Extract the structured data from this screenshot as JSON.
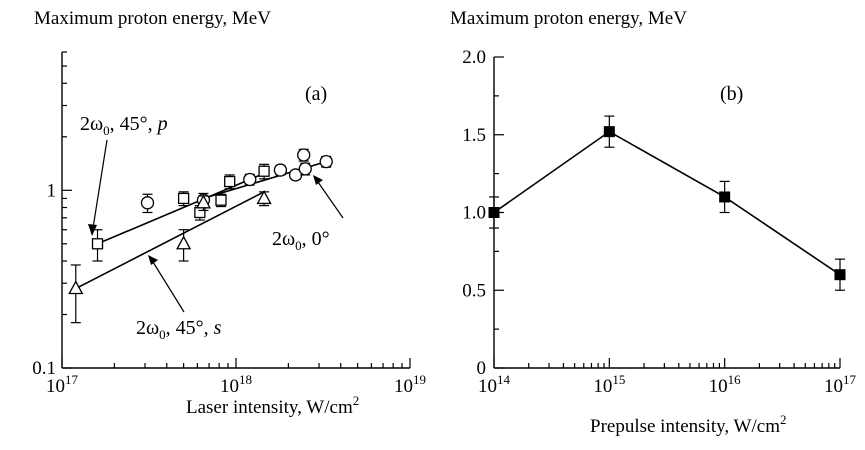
{
  "chart_data": [
    {
      "type": "scatter",
      "panel_label": "(a)",
      "title": "",
      "ylabel": "Maximum proton energy, MeV",
      "xlabel": "Laser intensity, W/cm",
      "xlabel_sup": "2",
      "xscale": "log",
      "yscale": "log",
      "xlim": [
        1e+17,
        1e+19
      ],
      "ylim": [
        0.1,
        6
      ],
      "x_ticks": [
        {
          "base": "10",
          "exp": "17",
          "value": 1e+17
        },
        {
          "base": "10",
          "exp": "18",
          "value": 1e+18
        },
        {
          "base": "10",
          "exp": "19",
          "value": 1e+19
        }
      ],
      "y_ticks": [
        {
          "label": "0.1",
          "value": 0.1
        },
        {
          "label": "1",
          "value": 1
        }
      ],
      "series": [
        {
          "name_main": "2ω",
          "name_sub": "0",
          "name_rest": ", 45°, ",
          "name_italic": "p",
          "marker": "square",
          "points": [
            {
              "x": 1.6e+17,
              "y": 0.5,
              "err": 0.1
            },
            {
              "x": 5e+17,
              "y": 0.9,
              "err": 0.08
            },
            {
              "x": 6.2e+17,
              "y": 0.75,
              "err": 0.07
            },
            {
              "x": 8.2e+17,
              "y": 0.88,
              "err": 0.07
            },
            {
              "x": 9.2e+17,
              "y": 1.12,
              "err": 0.1
            },
            {
              "x": 1.45e+18,
              "y": 1.28,
              "err": 0.12
            }
          ],
          "fit": [
            [
              1.6e+17,
              0.5
            ],
            [
              1.55e+18,
              1.28
            ]
          ]
        },
        {
          "name_main": "2ω",
          "name_sub": "0",
          "name_rest": ", 0°",
          "name_italic": "",
          "marker": "circle",
          "points": [
            {
              "x": 3.1e+17,
              "y": 0.85,
              "err": 0.1
            },
            {
              "x": 6.5e+17,
              "y": 0.88,
              "err": 0.08
            },
            {
              "x": 1.2e+18,
              "y": 1.15,
              "err": 0.08
            },
            {
              "x": 1.8e+18,
              "y": 1.3,
              "err": 0.08
            },
            {
              "x": 2.2e+18,
              "y": 1.22,
              "err": 0.07
            },
            {
              "x": 2.45e+18,
              "y": 1.58,
              "err": 0.12
            },
            {
              "x": 2.5e+18,
              "y": 1.32,
              "err": 0.1
            },
            {
              "x": 3.3e+18,
              "y": 1.45,
              "err": 0.1
            }
          ],
          "fit": [
            [
              6.5e+17,
              0.9
            ],
            [
              3.3e+18,
              1.45
            ]
          ]
        },
        {
          "name_main": "2ω",
          "name_sub": "0",
          "name_rest": ", 45°, ",
          "name_italic": "s",
          "marker": "triangle",
          "points": [
            {
              "x": 1.2e+17,
              "y": 0.28,
              "err": 0.1
            },
            {
              "x": 5e+17,
              "y": 0.5,
              "err": 0.1
            },
            {
              "x": 6.5e+17,
              "y": 0.85,
              "err": 0.08
            },
            {
              "x": 1.45e+18,
              "y": 0.9,
              "err": 0.08
            }
          ],
          "fit": [
            [
              1.2e+17,
              0.28
            ],
            [
              1.45e+18,
              0.98
            ]
          ]
        }
      ]
    },
    {
      "type": "line",
      "panel_label": "(b)",
      "title": "",
      "ylabel": "Maximum proton energy, MeV",
      "xlabel": "Prepulse intensity, W/cm",
      "xlabel_sup": "2",
      "xscale": "log",
      "yscale": "linear",
      "xlim": [
        100000000000000.0,
        1e+17
      ],
      "ylim": [
        0,
        2.0
      ],
      "x_ticks": [
        {
          "base": "10",
          "exp": "14",
          "value": 100000000000000.0
        },
        {
          "base": "10",
          "exp": "15",
          "value": 1000000000000000.0
        },
        {
          "base": "10",
          "exp": "16",
          "value": 1e+16
        },
        {
          "base": "10",
          "exp": "17",
          "value": 1e+17
        }
      ],
      "y_ticks": [
        {
          "label": "0",
          "value": 0
        },
        {
          "label": "0.5",
          "value": 0.5
        },
        {
          "label": "1.0",
          "value": 1.0
        },
        {
          "label": "1.5",
          "value": 1.5
        },
        {
          "label": "2.0",
          "value": 2.0
        }
      ],
      "series": [
        {
          "marker": "filled-square",
          "points": [
            {
              "x": 100000000000000.0,
              "y": 1.0,
              "err": 0.1
            },
            {
              "x": 1000000000000000.0,
              "y": 1.52,
              "err": 0.1
            },
            {
              "x": 1e+16,
              "y": 1.1,
              "err": 0.1
            },
            {
              "x": 1e+17,
              "y": 0.6,
              "err": 0.1
            }
          ]
        }
      ]
    }
  ]
}
